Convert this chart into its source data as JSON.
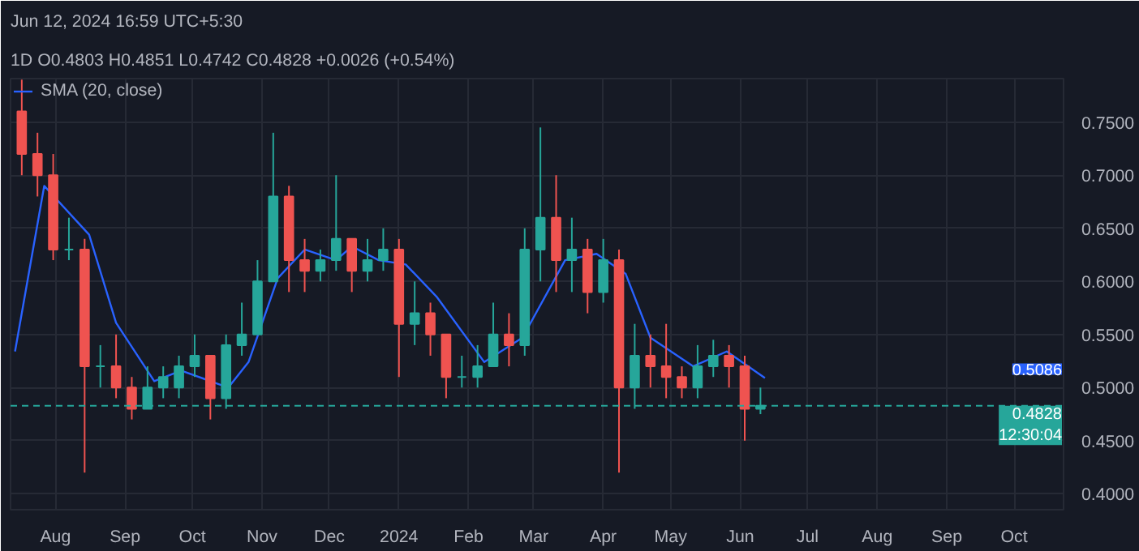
{
  "chart_data": {
    "type": "candlestick",
    "title": "Jun 12, 2024 16:59 UTC+5:30",
    "subtitle": "1D  O0.4803 H0.4851 L0.4742 C0.4828 +0.0026 (+0.54%)",
    "x": [
      "2023-07-17",
      "2023-07-24",
      "2023-07-31",
      "2023-08-07",
      "2023-08-14",
      "2023-08-21",
      "2023-08-28",
      "2023-09-04",
      "2023-09-11",
      "2023-09-18",
      "2023-09-25",
      "2023-10-02",
      "2023-10-09",
      "2023-10-16",
      "2023-10-23",
      "2023-10-30",
      "2023-11-06",
      "2023-11-13",
      "2023-11-20",
      "2023-11-27",
      "2023-12-04",
      "2023-12-11",
      "2023-12-18",
      "2023-12-25",
      "2024-01-01",
      "2024-01-08",
      "2024-01-15",
      "2024-01-22",
      "2024-01-29",
      "2024-02-05",
      "2024-02-12",
      "2024-02-19",
      "2024-02-26",
      "2024-03-04",
      "2024-03-11",
      "2024-03-18",
      "2024-03-25",
      "2024-04-01",
      "2024-04-08",
      "2024-04-15",
      "2024-04-22",
      "2024-04-29",
      "2024-05-06",
      "2024-05-13",
      "2024-05-20",
      "2024-05-27",
      "2024-06-03",
      "2024-06-10"
    ],
    "ohlc": [
      [
        0.76,
        0.79,
        0.7,
        0.72
      ],
      [
        0.72,
        0.74,
        0.68,
        0.7
      ],
      [
        0.7,
        0.72,
        0.62,
        0.63
      ],
      [
        0.63,
        0.66,
        0.62,
        0.63
      ],
      [
        0.63,
        0.64,
        0.42,
        0.52
      ],
      [
        0.52,
        0.54,
        0.5,
        0.52
      ],
      [
        0.52,
        0.55,
        0.49,
        0.5
      ],
      [
        0.5,
        0.51,
        0.47,
        0.48
      ],
      [
        0.48,
        0.52,
        0.48,
        0.5
      ],
      [
        0.5,
        0.52,
        0.49,
        0.51
      ],
      [
        0.5,
        0.53,
        0.49,
        0.52
      ],
      [
        0.52,
        0.55,
        0.51,
        0.53
      ],
      [
        0.53,
        0.53,
        0.47,
        0.49
      ],
      [
        0.49,
        0.55,
        0.48,
        0.54
      ],
      [
        0.54,
        0.58,
        0.53,
        0.55
      ],
      [
        0.55,
        0.62,
        0.55,
        0.6
      ],
      [
        0.6,
        0.74,
        0.6,
        0.68
      ],
      [
        0.68,
        0.69,
        0.59,
        0.62
      ],
      [
        0.62,
        0.64,
        0.59,
        0.61
      ],
      [
        0.61,
        0.63,
        0.6,
        0.62
      ],
      [
        0.62,
        0.7,
        0.61,
        0.64
      ],
      [
        0.64,
        0.64,
        0.59,
        0.61
      ],
      [
        0.61,
        0.64,
        0.6,
        0.62
      ],
      [
        0.62,
        0.65,
        0.61,
        0.63
      ],
      [
        0.63,
        0.64,
        0.51,
        0.56
      ],
      [
        0.56,
        0.6,
        0.54,
        0.57
      ],
      [
        0.57,
        0.58,
        0.53,
        0.55
      ],
      [
        0.55,
        0.55,
        0.49,
        0.51
      ],
      [
        0.51,
        0.53,
        0.5,
        0.51
      ],
      [
        0.51,
        0.54,
        0.5,
        0.52
      ],
      [
        0.52,
        0.58,
        0.52,
        0.55
      ],
      [
        0.55,
        0.57,
        0.52,
        0.54
      ],
      [
        0.54,
        0.65,
        0.53,
        0.63
      ],
      [
        0.63,
        0.745,
        0.6,
        0.66
      ],
      [
        0.66,
        0.7,
        0.59,
        0.62
      ],
      [
        0.62,
        0.66,
        0.59,
        0.63
      ],
      [
        0.63,
        0.64,
        0.57,
        0.59
      ],
      [
        0.59,
        0.64,
        0.58,
        0.62
      ],
      [
        0.62,
        0.63,
        0.42,
        0.5
      ],
      [
        0.5,
        0.56,
        0.48,
        0.53
      ],
      [
        0.53,
        0.55,
        0.5,
        0.52
      ],
      [
        0.52,
        0.56,
        0.49,
        0.51
      ],
      [
        0.51,
        0.52,
        0.49,
        0.5
      ],
      [
        0.5,
        0.54,
        0.49,
        0.52
      ],
      [
        0.52,
        0.545,
        0.51,
        0.53
      ],
      [
        0.53,
        0.54,
        0.5,
        0.52
      ],
      [
        0.52,
        0.53,
        0.45,
        0.48
      ],
      [
        0.48,
        0.5,
        0.475,
        0.4828
      ]
    ],
    "series": [
      {
        "type": "line",
        "name": "SMA (20, close)",
        "color": "#2962ff",
        "x": [
          "2023-07-14",
          "2023-07-27",
          "2023-08-16",
          "2023-08-28",
          "2023-09-14",
          "2023-09-26",
          "2023-10-17",
          "2023-10-26",
          "2023-11-08",
          "2023-11-20",
          "2023-12-04",
          "2023-12-11",
          "2023-12-23",
          "2024-01-04",
          "2024-01-18",
          "2024-02-08",
          "2024-02-25",
          "2024-03-15",
          "2024-03-29",
          "2024-04-11",
          "2024-04-22",
          "2024-05-11",
          "2024-05-26",
          "2024-06-12"
        ],
        "values": [
          0.534,
          0.69,
          0.644,
          0.561,
          0.506,
          0.516,
          0.5,
          0.524,
          0.603,
          0.63,
          0.62,
          0.633,
          0.62,
          0.616,
          0.585,
          0.524,
          0.547,
          0.62,
          0.626,
          0.607,
          0.547,
          0.52,
          0.534,
          0.509
        ]
      }
    ],
    "annotations": [
      "0.5086"
    ],
    "ref_lines": [
      {
        "axis": "y",
        "value": 0.4828,
        "label": "0.4828\n12:30:04",
        "color": "#26a69a",
        "line_style": "dashed"
      }
    ],
    "xlim": [
      "2023-07-12",
      "2024-10-23"
    ],
    "xticks": [
      {
        "value": "2023-08-01",
        "label": "Aug"
      },
      {
        "value": "2023-09-01",
        "label": "Sep"
      },
      {
        "value": "2023-10-01",
        "label": "Oct"
      },
      {
        "value": "2023-11-01",
        "label": "Nov"
      },
      {
        "value": "2023-12-01",
        "label": "Dec"
      },
      {
        "value": "2024-01-01",
        "label": "2024"
      },
      {
        "value": "2024-02-01",
        "label": "Feb"
      },
      {
        "value": "2024-03-01",
        "label": "Mar"
      },
      {
        "value": "2024-04-01",
        "label": "Apr"
      },
      {
        "value": "2024-05-01",
        "label": "May"
      },
      {
        "value": "2024-06-01",
        "label": "Jun"
      },
      {
        "value": "2024-07-01",
        "label": "Jul"
      },
      {
        "value": "2024-08-01",
        "label": "Aug"
      },
      {
        "value": "2024-09-01",
        "label": "Sep"
      },
      {
        "value": "2024-10-01",
        "label": "Oct"
      }
    ],
    "ylim": [
      0.385,
      0.791
    ],
    "yticks": [
      {
        "value": 0.4,
        "label": "0.4000"
      },
      {
        "value": 0.45,
        "label": "0.4500"
      },
      {
        "value": 0.5,
        "label": "0.5000"
      },
      {
        "value": 0.55,
        "label": "0.5500"
      },
      {
        "value": 0.6,
        "label": "0.6000"
      },
      {
        "value": 0.65,
        "label": "0.6500"
      },
      {
        "value": 0.7,
        "label": "0.7000"
      },
      {
        "value": 0.75,
        "label": "0.7500"
      }
    ],
    "grid": true,
    "legend": "top left"
  }
}
